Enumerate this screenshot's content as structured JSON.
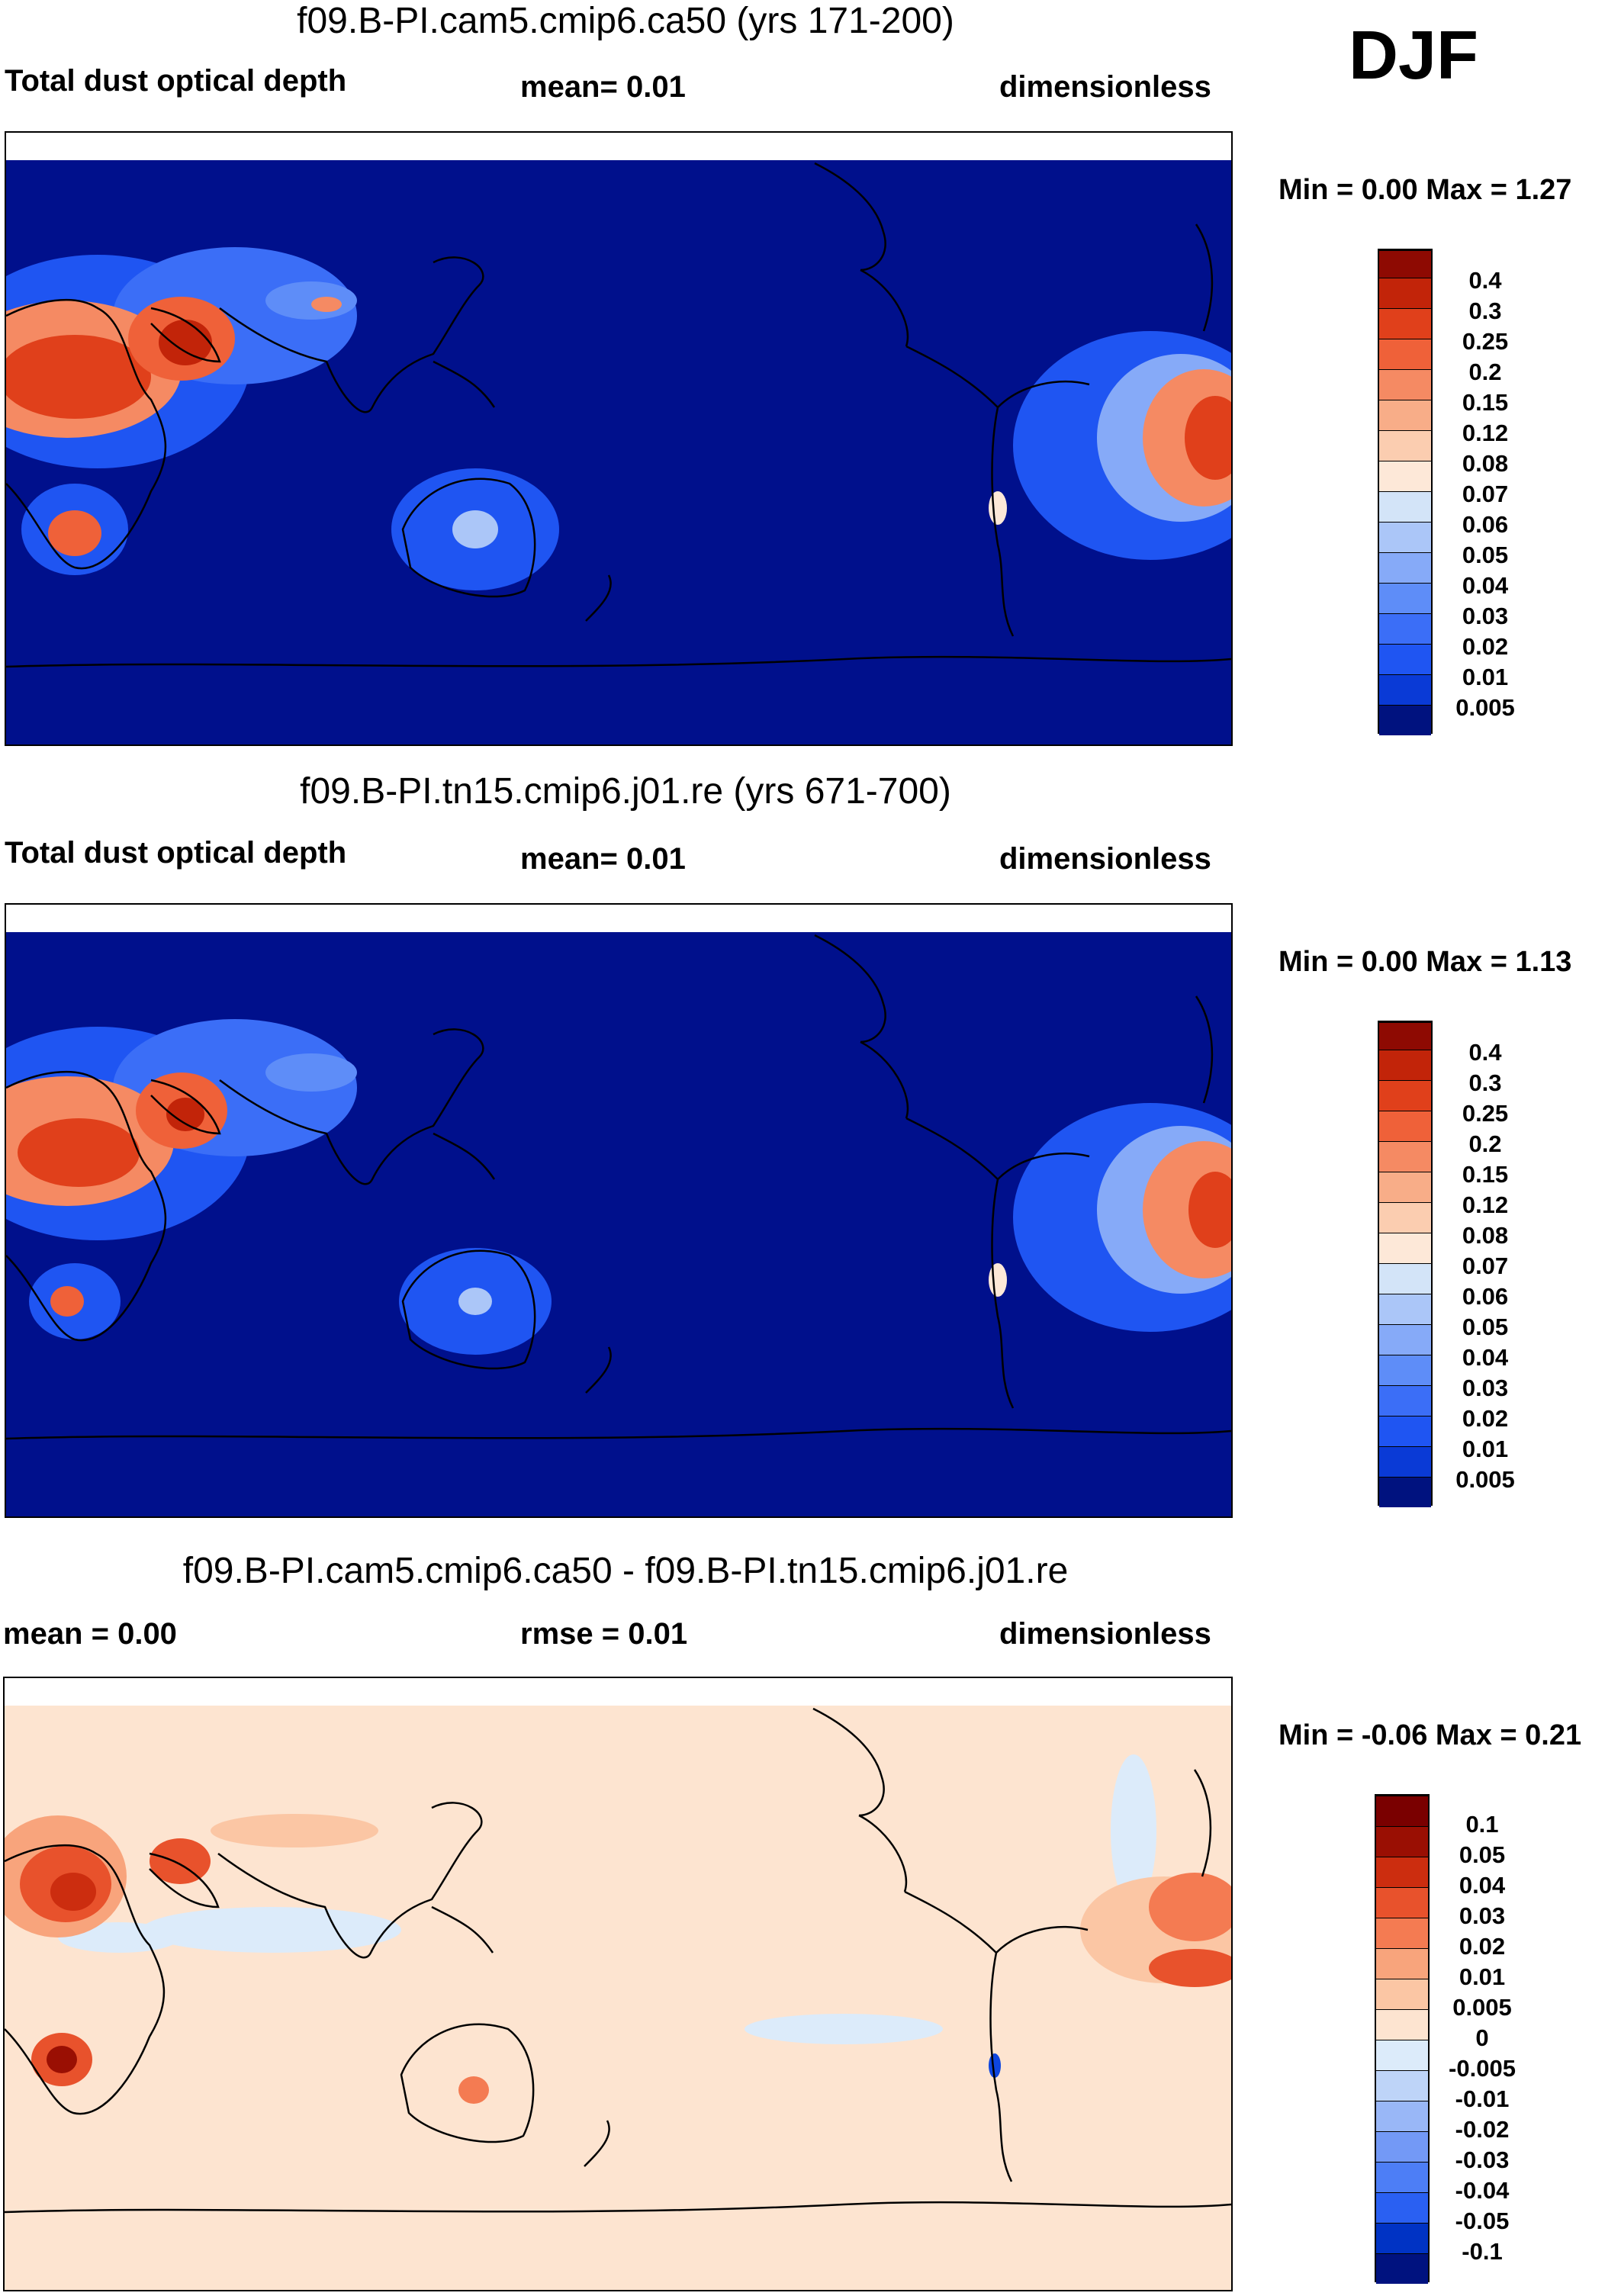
{
  "season": "DJF",
  "colors": {
    "ocean_deep": "#00108c",
    "map_bg_diff": "#fde4d0",
    "coast": "#000000",
    "abs_scale": [
      "#00127f",
      "#0027b0",
      "#0a3ad6",
      "#1f55f2",
      "#3b6ef7",
      "#5e8df8",
      "#86aaf8",
      "#abc6f8",
      "#d3e4f8",
      "#fde8d8",
      "#fbcdb0",
      "#f8ad88",
      "#f58a63",
      "#ef6139",
      "#e0401b",
      "#c22409",
      "#8e0a02"
    ],
    "diff_scale": [
      "#00127f",
      "#0022a4",
      "#0033c4",
      "#0e46e0",
      "#2a60f2",
      "#4d7ef6",
      "#7399f6",
      "#99b7f7",
      "#bed4f8",
      "#dcebfa",
      "#fde4d0",
      "#fbc6a4",
      "#f8a47c",
      "#f47b52",
      "#e8522c",
      "#cc2d0f",
      "#9a0f03",
      "#7a0000"
    ]
  },
  "panels": [
    {
      "id": "case",
      "title": "f09.B-PI.cam5.cmip6.ca50 (yrs 171-200)",
      "left_label": "Total dust optical depth",
      "center_label": "mean=   0.01",
      "right_label": "dimensionless",
      "minmax": "Min =   0.00 Max =   1.27",
      "colorbar": {
        "levels": [
          "0.4",
          "0.3",
          "0.25",
          "0.2",
          "0.15",
          "0.12",
          "0.08",
          "0.07",
          "0.06",
          "0.05",
          "0.04",
          "0.03",
          "0.02",
          "0.01",
          "0.005"
        ]
      }
    },
    {
      "id": "control",
      "title": "f09.B-PI.tn15.cmip6.j01.re (yrs 671-700)",
      "left_label": "Total dust optical depth",
      "center_label": "mean=   0.01",
      "right_label": "dimensionless",
      "minmax": "Min =   0.00 Max =   1.13",
      "colorbar": {
        "levels": [
          "0.4",
          "0.3",
          "0.25",
          "0.2",
          "0.15",
          "0.12",
          "0.08",
          "0.07",
          "0.06",
          "0.05",
          "0.04",
          "0.03",
          "0.02",
          "0.01",
          "0.005"
        ]
      }
    },
    {
      "id": "difference",
      "title": "f09.B-PI.cam5.cmip6.ca50 - f09.B-PI.tn15.cmip6.j01.re",
      "left_label": "mean =    0.00",
      "center_label": "rmse =   0.01",
      "right_label": "dimensionless",
      "minmax": "Min =  -0.06 Max =   0.21",
      "colorbar": {
        "levels": [
          "0.1",
          "0.05",
          "0.04",
          "0.03",
          "0.02",
          "0.01",
          "0.005",
          "0",
          "-0.005",
          "-0.01",
          "-0.02",
          "-0.03",
          "-0.04",
          "-0.05",
          "-0.1"
        ]
      }
    }
  ]
}
